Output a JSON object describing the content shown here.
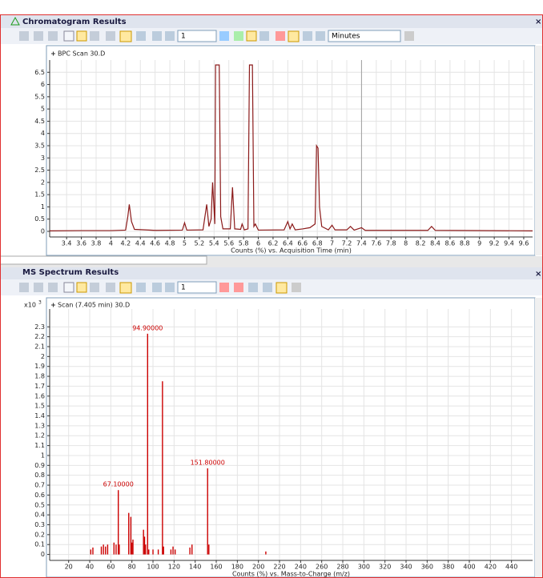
{
  "windows": [
    {
      "title": "Chromatogram Results",
      "toolbar": {
        "step": "1",
        "units": "Minutes"
      }
    },
    {
      "title": "MS Spectrum Results",
      "toolbar": {
        "step": "1"
      }
    }
  ],
  "chart_data": [
    {
      "type": "line",
      "title": "BPC Scan 30.D",
      "xlabel": "Counts (%) vs. Acquisition Time (min)",
      "color": "#8b1a1a",
      "grid": true,
      "x": [
        3.17,
        3.6,
        4.0,
        4.2,
        4.23,
        4.25,
        4.28,
        4.32,
        4.6,
        4.97,
        5.0,
        5.03,
        5.25,
        5.3,
        5.33,
        5.36,
        5.38,
        5.41,
        5.42,
        5.47,
        5.49,
        5.52,
        5.62,
        5.65,
        5.68,
        5.76,
        5.78,
        5.81,
        5.86,
        5.88,
        5.92,
        5.94,
        5.96,
        6.0,
        6.35,
        6.4,
        6.43,
        6.46,
        6.5,
        6.6,
        6.7,
        6.77,
        6.79,
        6.81,
        6.83,
        6.86,
        6.95,
        7.0,
        7.04,
        7.2,
        7.25,
        7.3,
        7.4,
        7.45,
        8.3,
        8.35,
        8.4,
        9.72
      ],
      "values": [
        0.02,
        0.03,
        0.03,
        0.05,
        0.6,
        1.1,
        0.4,
        0.08,
        0.04,
        0.05,
        0.35,
        0.05,
        0.06,
        1.1,
        0.2,
        0.5,
        2.0,
        0.3,
        6.8,
        6.8,
        0.6,
        0.1,
        0.1,
        1.8,
        0.1,
        0.08,
        0.3,
        0.06,
        0.1,
        6.8,
        6.8,
        0.2,
        0.3,
        0.05,
        0.06,
        0.4,
        0.1,
        0.3,
        0.06,
        0.1,
        0.15,
        0.3,
        3.5,
        3.4,
        1.0,
        0.2,
        0.06,
        0.25,
        0.06,
        0.06,
        0.2,
        0.05,
        0.15,
        0.04,
        0.04,
        0.2,
        0.04,
        0.02
      ],
      "cursor_x": 7.4,
      "xlim": [
        3.17,
        9.72
      ],
      "xticks": [
        3.4,
        3.6,
        3.8,
        4,
        4.2,
        4.4,
        4.6,
        4.8,
        5,
        5.2,
        5.4,
        5.6,
        5.8,
        6,
        6.2,
        6.4,
        6.6,
        6.8,
        7,
        7.2,
        7.4,
        7.6,
        7.8,
        8,
        8.2,
        8.4,
        8.6,
        8.8,
        9,
        9.2,
        9.4,
        9.6
      ],
      "ylim": [
        -0.23,
        7.0
      ],
      "yticks": [
        0,
        0.5,
        1,
        1.5,
        2,
        2.5,
        3,
        3.5,
        4,
        4.5,
        5,
        5.5,
        6,
        6.5
      ]
    },
    {
      "type": "bar",
      "title": "Scan (7.405 min) 30.D",
      "xlabel": "Counts (%) vs. Mass-to-Charge (m/z)",
      "color": "#cc0000",
      "grid": true,
      "y_multiplier": {
        "base": "x10",
        "exponent": "3"
      },
      "x": [
        41,
        43,
        51,
        53,
        55,
        57,
        63,
        65,
        67.1,
        68,
        77,
        79,
        80,
        81,
        91,
        92,
        93,
        94.9,
        96,
        100,
        105,
        109,
        110,
        117,
        119,
        121,
        135,
        137,
        151.8,
        153,
        207
      ],
      "values": [
        0.05,
        0.07,
        0.08,
        0.1,
        0.08,
        0.1,
        0.12,
        0.1,
        0.65,
        0.1,
        0.42,
        0.38,
        0.12,
        0.15,
        0.25,
        0.18,
        0.1,
        2.23,
        0.05,
        0.05,
        0.05,
        1.75,
        0.08,
        0.05,
        0.08,
        0.05,
        0.07,
        0.1,
        0.87,
        0.1,
        0.03
      ],
      "annotations": [
        {
          "text": "94.90000",
          "x": 94.9,
          "y": 2.23
        },
        {
          "text": "67.10000",
          "x": 67.1,
          "y": 0.65
        },
        {
          "text": "151.80000",
          "x": 151.8,
          "y": 0.87
        }
      ],
      "xlim": [
        2,
        460
      ],
      "xticks": [
        20,
        40,
        60,
        80,
        100,
        120,
        140,
        160,
        180,
        200,
        220,
        240,
        260,
        280,
        300,
        320,
        340,
        360,
        380,
        400,
        420,
        440
      ],
      "ylim": [
        -0.06,
        2.48
      ],
      "yticks": [
        0,
        0.1,
        0.2,
        0.3,
        0.4,
        0.5,
        0.6,
        0.7,
        0.8,
        0.9,
        1,
        1.1,
        1.2,
        1.3,
        1.4,
        1.5,
        1.6,
        1.7,
        1.8,
        1.9,
        2,
        2.1,
        2.2,
        2.3
      ]
    }
  ]
}
